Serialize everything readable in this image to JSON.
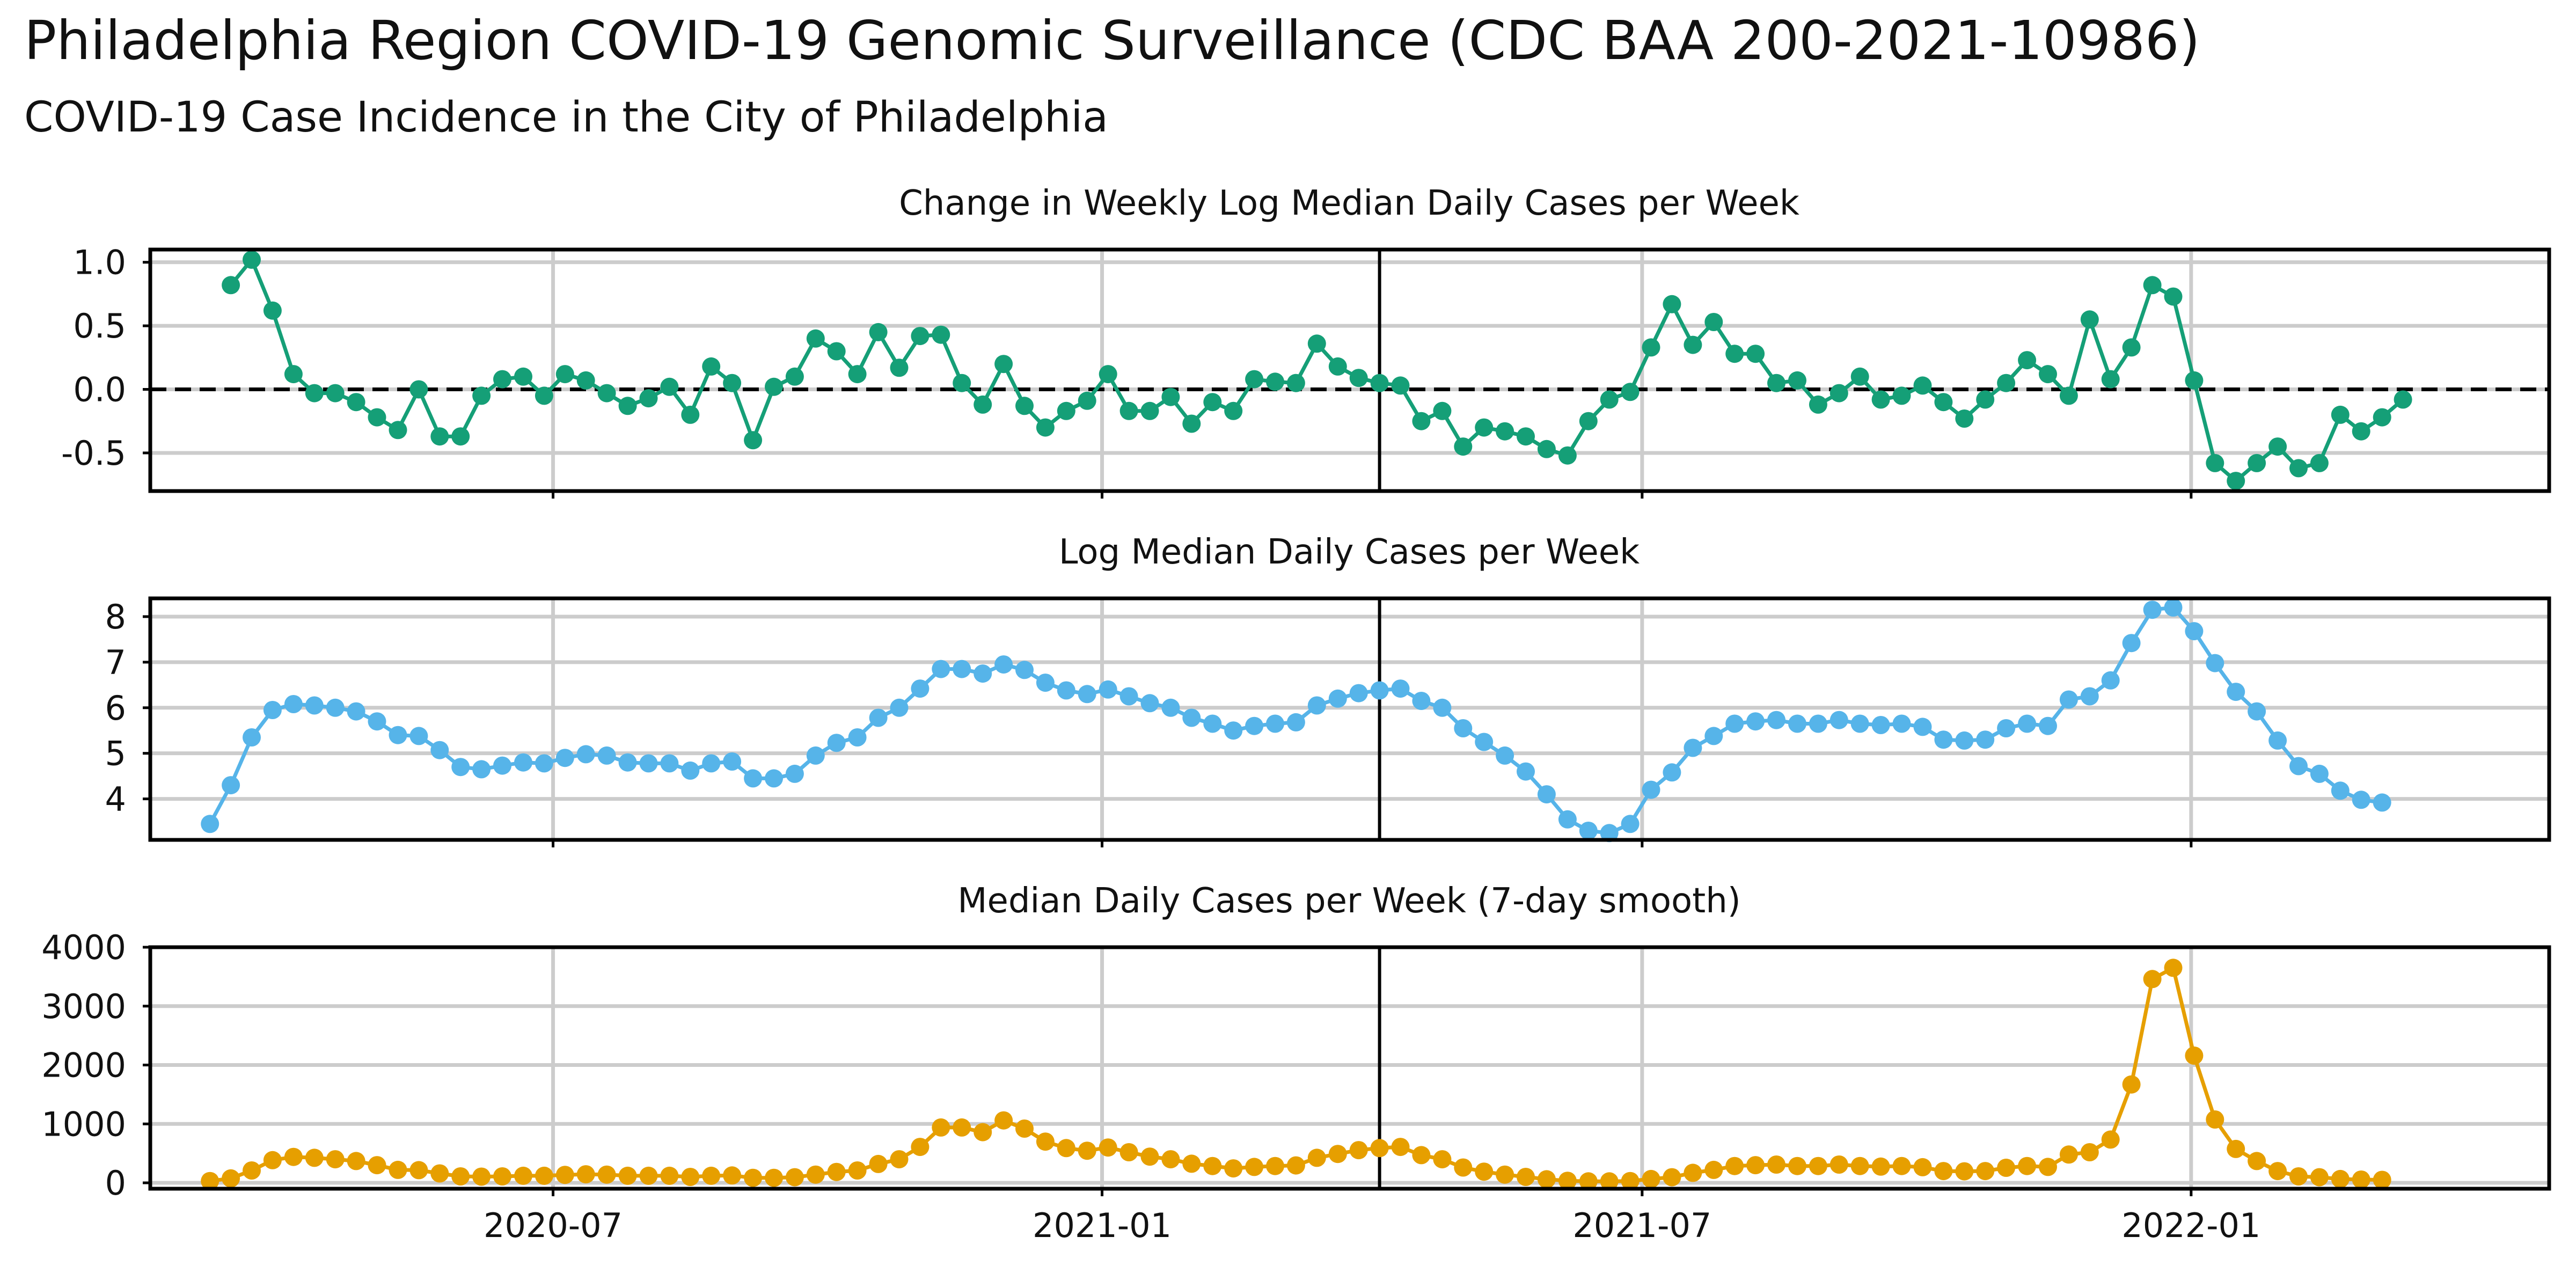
{
  "title": "Philadelphia Region COVID-19 Genomic Surveillance (CDC BAA 200-2021-10986)",
  "subtitle": "COVID-19 Case Incidence in the City of Philadelphia",
  "chart_data": [
    {
      "type": "line",
      "title": "Change in Weekly Log Median Daily Cases per Week",
      "xlabel": "",
      "ylabel": "",
      "ylim": [
        -0.8,
        1.1
      ],
      "yticks": [
        -0.5,
        0.0,
        0.5,
        1.0
      ],
      "ytick_labels": [
        "-0.5",
        "0.0",
        "0.5",
        "1.0"
      ],
      "xticks": [
        "2020-07-01",
        "2021-01-01",
        "2021-07-01",
        "2022-01-01"
      ],
      "xtick_labels": [],
      "reference_line_y": 0,
      "reference_line_style": "dashed",
      "vertical_marker_date": "2021-04-04",
      "grid": true,
      "color": "#159f77",
      "series": [
        {
          "x_start": "2020-03-15",
          "step_days": 7,
          "values": [
            0.82,
            1.02,
            0.62,
            0.12,
            -0.03,
            -0.03,
            -0.1,
            -0.22,
            -0.32,
            0.0,
            -0.37,
            -0.37,
            -0.05,
            0.08,
            0.1,
            -0.05,
            0.12,
            0.07,
            -0.03,
            -0.13,
            -0.07,
            0.02,
            -0.2,
            0.18,
            0.05,
            -0.4,
            0.02,
            0.1,
            0.4,
            0.3,
            0.12,
            0.45,
            0.17,
            0.42,
            0.43,
            0.05,
            -0.12,
            0.2,
            -0.13,
            -0.3,
            -0.17,
            -0.09,
            0.12,
            -0.17,
            -0.17,
            -0.06,
            -0.27,
            -0.1,
            -0.17,
            0.08,
            0.06,
            0.05,
            0.36,
            0.18,
            0.09,
            0.05,
            0.03,
            -0.25,
            -0.17,
            -0.45,
            -0.3,
            -0.33,
            -0.37,
            -0.47,
            -0.52,
            -0.25,
            -0.08,
            -0.02,
            0.33,
            0.67,
            0.35,
            0.53,
            0.28,
            0.28,
            0.05,
            0.07,
            -0.12,
            -0.03,
            0.1,
            -0.08,
            -0.05,
            0.03,
            -0.1,
            -0.23,
            -0.08,
            0.05,
            0.23,
            0.12,
            -0.05,
            0.55,
            0.08,
            0.33,
            0.82,
            0.73,
            0.07,
            -0.58,
            -0.72,
            -0.58,
            -0.45,
            -0.62,
            -0.58,
            -0.2,
            -0.33,
            -0.22,
            -0.08
          ]
        }
      ]
    },
    {
      "type": "line",
      "title": "Log Median Daily Cases per Week",
      "xlabel": "",
      "ylabel": "",
      "ylim": [
        3.1,
        8.4
      ],
      "yticks": [
        4,
        5,
        6,
        7,
        8
      ],
      "ytick_labels": [
        "4",
        "5",
        "6",
        "7",
        "8"
      ],
      "xticks": [
        "2020-07-01",
        "2021-01-01",
        "2021-07-01",
        "2022-01-01"
      ],
      "xtick_labels": [],
      "vertical_marker_date": "2021-04-04",
      "grid": true,
      "color": "#56b4e9",
      "series": [
        {
          "x_start": "2020-03-08",
          "step_days": 7,
          "values": [
            3.45,
            4.3,
            5.35,
            5.95,
            6.08,
            6.05,
            6.0,
            5.92,
            5.7,
            5.4,
            5.38,
            5.07,
            4.7,
            4.65,
            4.73,
            4.8,
            4.78,
            4.9,
            4.98,
            4.95,
            4.8,
            4.78,
            4.78,
            4.62,
            4.78,
            4.82,
            4.45,
            4.45,
            4.55,
            4.95,
            5.23,
            5.35,
            5.78,
            6.0,
            6.42,
            6.85,
            6.85,
            6.75,
            6.95,
            6.83,
            6.55,
            6.38,
            6.3,
            6.4,
            6.25,
            6.1,
            6.0,
            5.78,
            5.65,
            5.5,
            5.6,
            5.65,
            5.68,
            6.05,
            6.2,
            6.32,
            6.38,
            6.42,
            6.15,
            6.0,
            5.55,
            5.25,
            4.95,
            4.6,
            4.1,
            3.55,
            3.3,
            3.25,
            3.45,
            4.2,
            4.58,
            5.12,
            5.38,
            5.65,
            5.7,
            5.73,
            5.65,
            5.65,
            5.73,
            5.65,
            5.62,
            5.65,
            5.58,
            5.3,
            5.28,
            5.3,
            5.55,
            5.65,
            5.6,
            6.18,
            6.25,
            6.6,
            7.42,
            8.15,
            8.2,
            7.68,
            6.98,
            6.35,
            5.92,
            5.28,
            4.72,
            4.55,
            4.18,
            3.98,
            3.92
          ]
        }
      ]
    },
    {
      "type": "line",
      "title": "Median Daily Cases per Week (7-day smooth)",
      "xlabel": "",
      "ylabel": "",
      "ylim": [
        -100,
        4000
      ],
      "yticks": [
        0,
        1000,
        2000,
        3000,
        4000
      ],
      "ytick_labels": [
        "0",
        "1000",
        "2000",
        "3000",
        "4000"
      ],
      "xticks": [
        "2020-07-01",
        "2021-01-01",
        "2021-07-01",
        "2022-01-01"
      ],
      "xtick_labels": [
        "2020-07",
        "2021-01",
        "2021-07",
        "2022-01"
      ],
      "vertical_marker_date": "2021-04-04",
      "grid": true,
      "color": "#e69f00",
      "series": [
        {
          "x_start": "2020-03-08",
          "step_days": 7,
          "values": [
            30,
            75,
            210,
            385,
            440,
            425,
            400,
            370,
            300,
            220,
            215,
            160,
            110,
            105,
            110,
            120,
            120,
            135,
            145,
            140,
            120,
            120,
            120,
            100,
            120,
            125,
            85,
            85,
            95,
            140,
            185,
            210,
            320,
            400,
            610,
            940,
            940,
            860,
            1060,
            920,
            700,
            590,
            545,
            600,
            520,
            445,
            400,
            325,
            285,
            245,
            270,
            285,
            295,
            425,
            490,
            555,
            590,
            610,
            470,
            400,
            260,
            190,
            140,
            100,
            60,
            35,
            25,
            25,
            30,
            65,
            95,
            170,
            220,
            285,
            300,
            310,
            285,
            285,
            310,
            285,
            275,
            285,
            265,
            200,
            195,
            200,
            255,
            285,
            270,
            480,
            520,
            735,
            1670,
            3460,
            3650,
            2160,
            1075,
            575,
            370,
            200,
            110,
            95,
            65,
            55,
            50
          ]
        }
      ]
    }
  ]
}
